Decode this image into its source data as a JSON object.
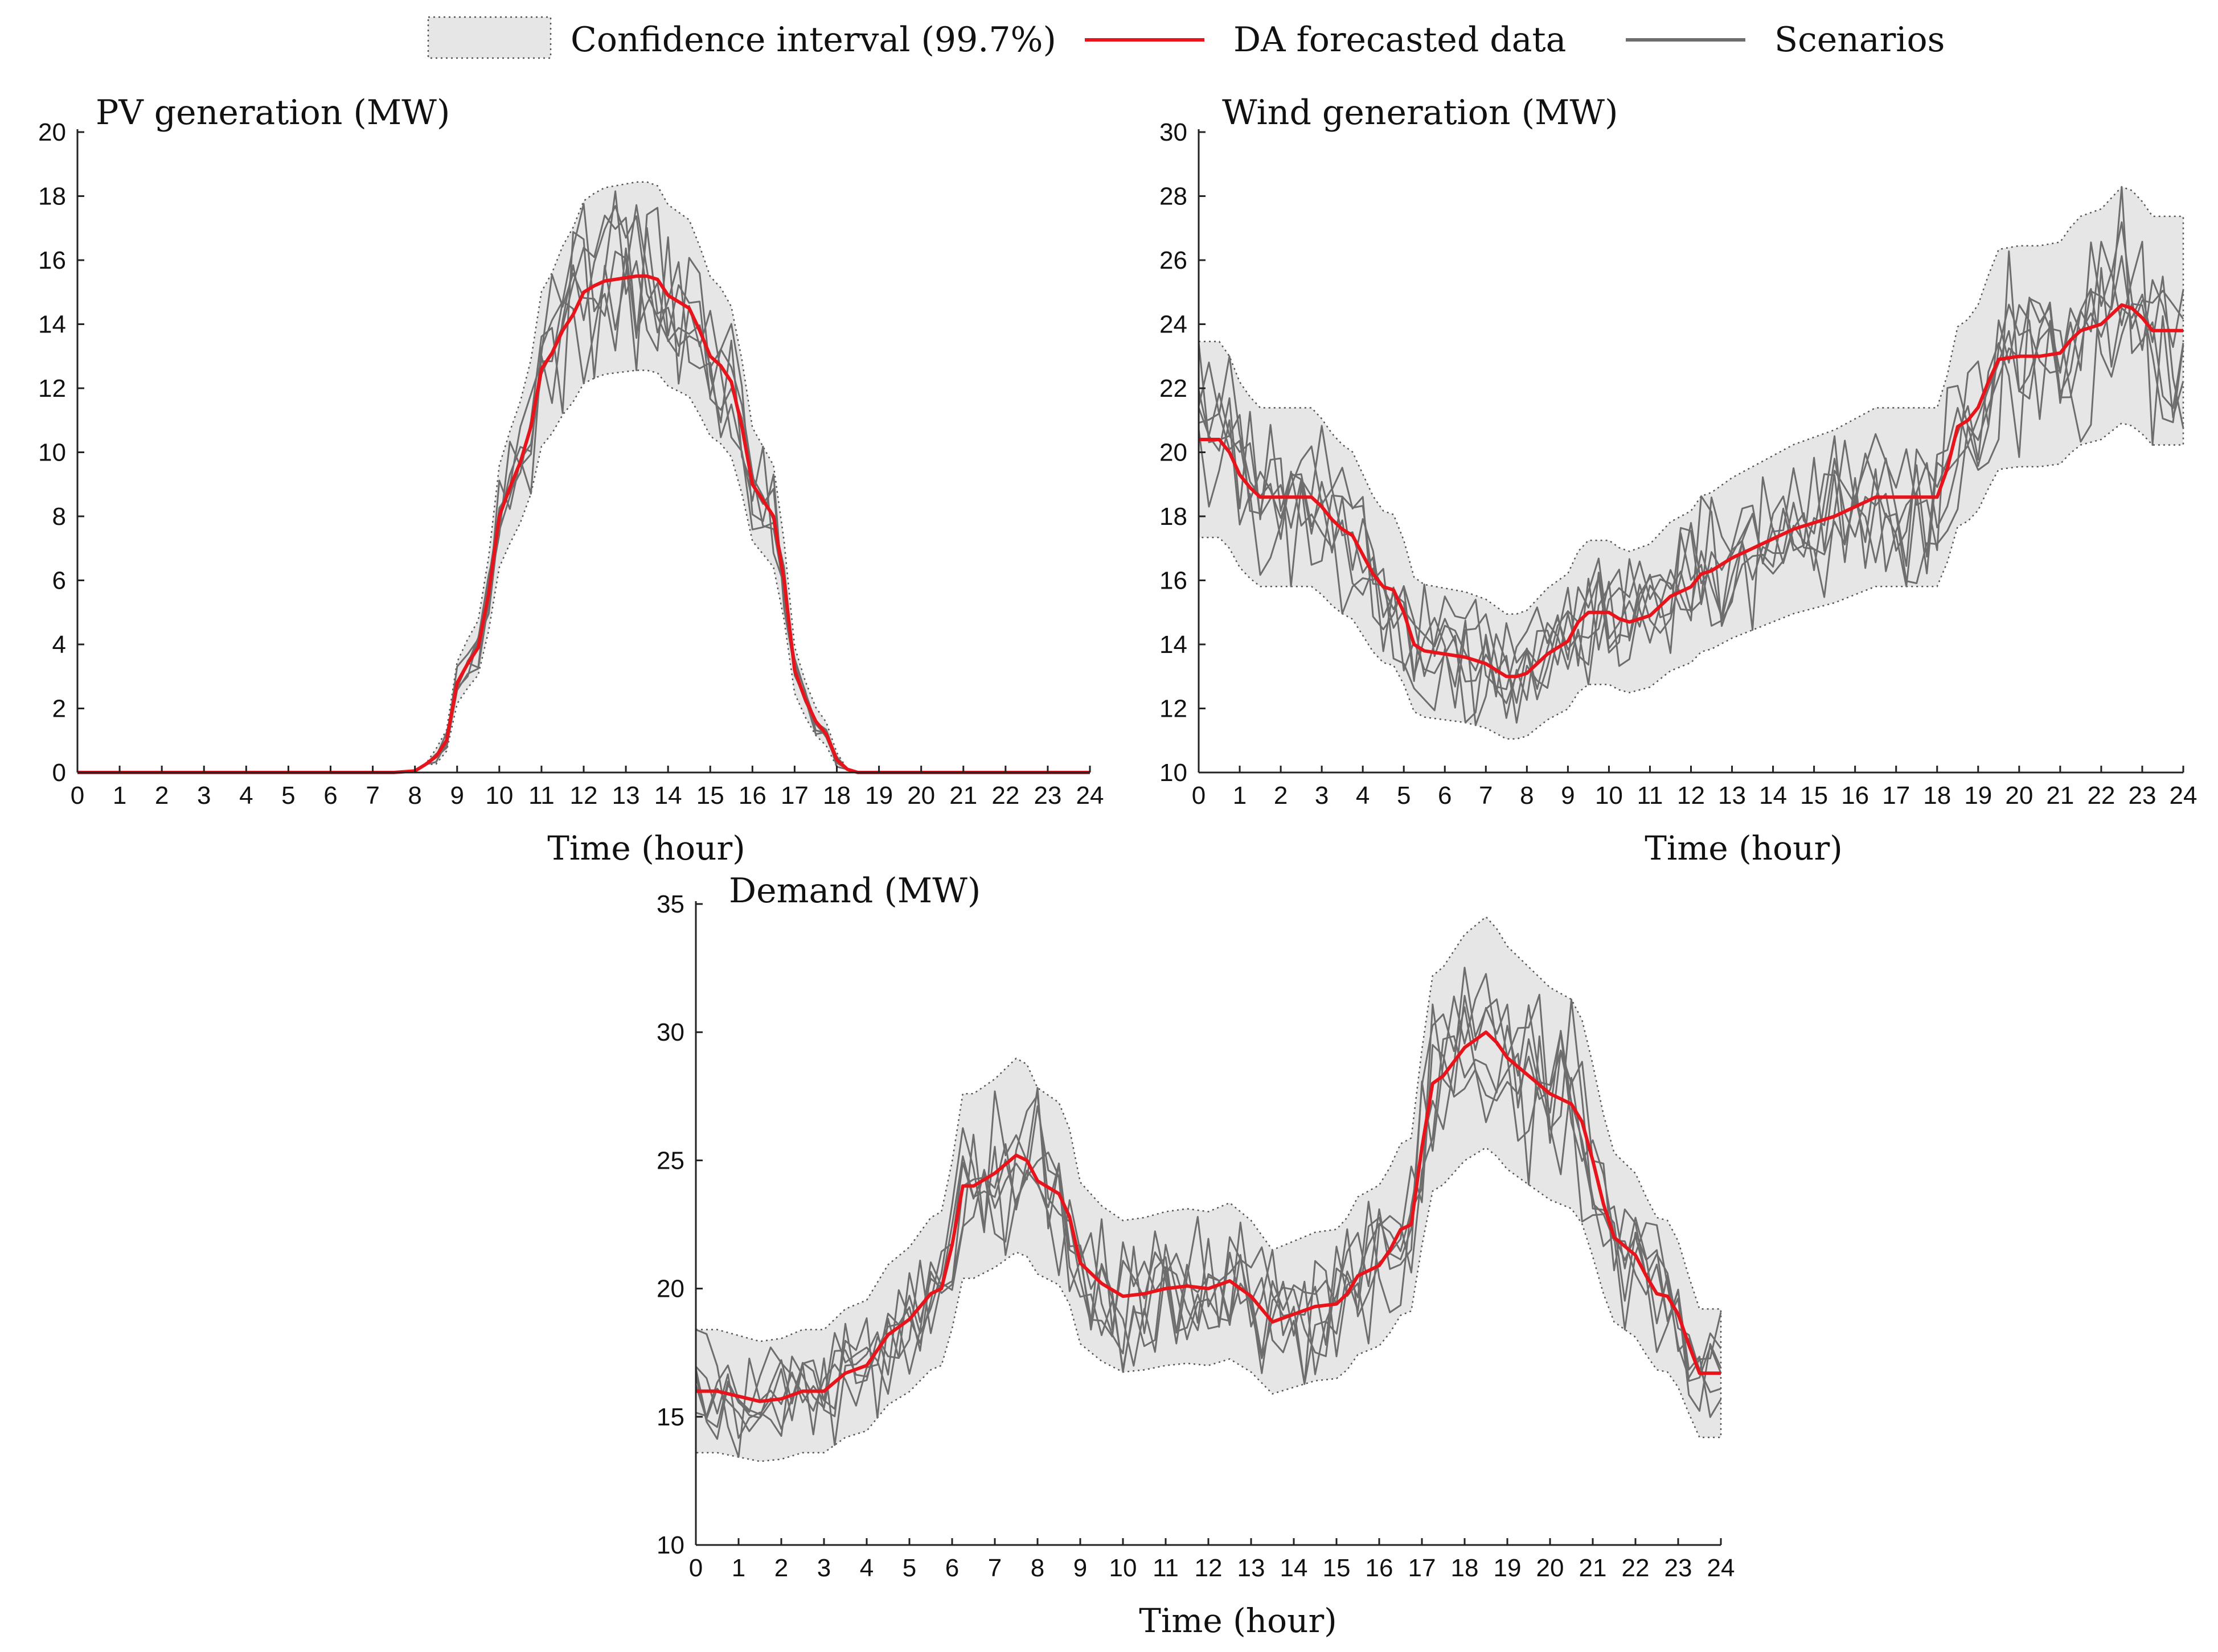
{
  "colors": {
    "forecast": "#e8141c",
    "scenario": "#6d6d6d",
    "band_fill": "#e6e6e6",
    "band_edge": "#555555",
    "axis": "#222222"
  },
  "legend": {
    "confidence_label": "Confidence interval (99.7%)",
    "forecast_label": "DA forecasted data",
    "scenarios_label": "Scenarios"
  },
  "chart_data": [
    {
      "id": "pv",
      "type": "line",
      "title": "PV generation (MW)",
      "ylabel": "PV generation (MW)",
      "xlabel": "Time (hour)",
      "xlim": [
        0,
        24
      ],
      "ylim": [
        0,
        20
      ],
      "xticks": [
        0,
        1,
        2,
        3,
        4,
        5,
        6,
        7,
        8,
        9,
        10,
        11,
        12,
        13,
        14,
        15,
        16,
        17,
        18,
        19,
        20,
        21,
        22,
        23,
        24
      ],
      "yticks": [
        0,
        2,
        4,
        6,
        8,
        10,
        12,
        14,
        16,
        18,
        20
      ],
      "scenario_count": 6,
      "confidence_level": "99.7%",
      "confidence_sigma": 3,
      "forecast": {
        "x": [
          0,
          1,
          2,
          3,
          4,
          5,
          6,
          7,
          7.5,
          8,
          8.25,
          8.5,
          8.75,
          9,
          9.25,
          9.5,
          9.75,
          10,
          10.25,
          10.5,
          10.75,
          11,
          11.25,
          11.5,
          11.75,
          12,
          12.25,
          12.5,
          12.75,
          13,
          13.25,
          13.5,
          13.75,
          14,
          14.25,
          14.5,
          14.75,
          15,
          15.25,
          15.5,
          15.75,
          16,
          16.25,
          16.5,
          16.75,
          17,
          17.25,
          17.5,
          17.75,
          18,
          18.25,
          18.5,
          19,
          20,
          21,
          22,
          23,
          24
        ],
        "y": [
          0,
          0,
          0,
          0,
          0,
          0,
          0,
          0,
          0,
          0.05,
          0.25,
          0.5,
          1.0,
          2.8,
          3.4,
          3.9,
          5.6,
          8.0,
          8.9,
          9.7,
          10.8,
          12.6,
          13.1,
          13.8,
          14.3,
          15.0,
          15.2,
          15.35,
          15.4,
          15.45,
          15.5,
          15.5,
          15.4,
          14.9,
          14.7,
          14.5,
          13.8,
          13.0,
          12.7,
          12.2,
          10.8,
          9.0,
          8.5,
          8.0,
          6.0,
          3.2,
          2.3,
          1.6,
          1.2,
          0.4,
          0.1,
          0,
          0,
          0,
          0,
          0,
          0,
          0
        ]
      }
    },
    {
      "id": "wind",
      "type": "line",
      "title": "Wind generation (MW)",
      "ylabel": "Wind generation (MW)",
      "xlabel": "Time (hour)",
      "xlim": [
        0,
        24
      ],
      "ylim": [
        10,
        30
      ],
      "xticks": [
        0,
        1,
        2,
        3,
        4,
        5,
        6,
        7,
        8,
        9,
        10,
        11,
        12,
        13,
        14,
        15,
        16,
        17,
        18,
        19,
        20,
        21,
        22,
        23,
        24
      ],
      "yticks": [
        10,
        12,
        14,
        16,
        18,
        20,
        22,
        24,
        26,
        28,
        30
      ],
      "scenario_count": 6,
      "confidence_level": "99.7%",
      "confidence_sigma": 3,
      "forecast": {
        "x": [
          0,
          0.5,
          0.75,
          1,
          1.25,
          1.5,
          2,
          2.5,
          2.75,
          3,
          3.25,
          3.5,
          3.75,
          4,
          4.25,
          4.5,
          4.75,
          5,
          5.25,
          5.5,
          6,
          6.5,
          6.75,
          7,
          7.25,
          7.5,
          7.75,
          8,
          8.5,
          9,
          9.25,
          9.5,
          10,
          10.25,
          10.5,
          11,
          11.5,
          12,
          12.25,
          12.5,
          13,
          13.5,
          14,
          14.5,
          15,
          15.5,
          16,
          16.5,
          17,
          17.5,
          18,
          18.25,
          18.5,
          18.75,
          19,
          19.25,
          19.5,
          20,
          20.5,
          21,
          21.25,
          21.5,
          22,
          22.25,
          22.5,
          22.75,
          23,
          23.25,
          23.5,
          24
        ],
        "y": [
          20.4,
          20.4,
          20.0,
          19.3,
          18.9,
          18.6,
          18.6,
          18.6,
          18.6,
          18.3,
          17.9,
          17.6,
          17.4,
          16.8,
          16.2,
          15.8,
          15.7,
          15.0,
          14.0,
          13.8,
          13.7,
          13.6,
          13.5,
          13.4,
          13.2,
          13.0,
          13.0,
          13.1,
          13.7,
          14.1,
          14.7,
          15.0,
          15.0,
          14.8,
          14.7,
          14.9,
          15.5,
          15.8,
          16.2,
          16.3,
          16.7,
          17.0,
          17.3,
          17.6,
          17.8,
          18.0,
          18.3,
          18.6,
          18.6,
          18.6,
          18.6,
          19.5,
          20.8,
          21.0,
          21.4,
          22.2,
          22.9,
          23.0,
          23.0,
          23.1,
          23.5,
          23.8,
          24.0,
          24.3,
          24.6,
          24.5,
          24.2,
          23.8,
          23.8,
          23.8
        ]
      }
    },
    {
      "id": "demand",
      "type": "line",
      "title": "Demand (MW)",
      "ylabel": "Demand (MW)",
      "xlabel": "Time (hour)",
      "xlim": [
        0,
        24
      ],
      "ylim": [
        10,
        35
      ],
      "xticks": [
        0,
        1,
        2,
        3,
        4,
        5,
        6,
        7,
        8,
        9,
        10,
        11,
        12,
        13,
        14,
        15,
        16,
        17,
        18,
        19,
        20,
        21,
        22,
        23,
        24
      ],
      "yticks": [
        10,
        15,
        20,
        25,
        30,
        35
      ],
      "scenario_count": 6,
      "confidence_level": "99.7%",
      "confidence_sigma": 3,
      "forecast": {
        "x": [
          0,
          0.5,
          1,
          1.5,
          2,
          2.5,
          3,
          3.5,
          4,
          4.5,
          5,
          5.25,
          5.5,
          5.75,
          6,
          6.25,
          6.5,
          7,
          7.5,
          7.75,
          8,
          8.5,
          8.75,
          9,
          9.5,
          10,
          10.5,
          11,
          11.5,
          12,
          12.5,
          13,
          13.5,
          14,
          14.5,
          15,
          15.25,
          15.5,
          16,
          16.25,
          16.5,
          16.75,
          17,
          17.25,
          17.5,
          18,
          18.5,
          18.75,
          19,
          19.5,
          20,
          20.5,
          20.75,
          21,
          21.25,
          21.5,
          22,
          22.25,
          22.5,
          22.75,
          23,
          23.25,
          23.5,
          24
        ],
        "y": [
          16.0,
          16.0,
          15.8,
          15.6,
          15.7,
          16.0,
          16.0,
          16.7,
          17.0,
          18.2,
          18.8,
          19.3,
          19.8,
          20.0,
          21.7,
          24.0,
          24.0,
          24.5,
          25.2,
          25.0,
          24.2,
          23.7,
          22.8,
          21.0,
          20.2,
          19.7,
          19.8,
          20.0,
          20.1,
          20.0,
          20.3,
          19.7,
          18.7,
          19.0,
          19.3,
          19.4,
          19.8,
          20.5,
          20.9,
          21.5,
          22.3,
          22.5,
          25.5,
          28.0,
          28.3,
          29.4,
          30.0,
          29.6,
          29.0,
          28.3,
          27.6,
          27.2,
          26.5,
          25.0,
          23.3,
          22.0,
          21.3,
          20.5,
          19.8,
          19.7,
          19.0,
          17.8,
          16.7,
          16.7
        ]
      }
    }
  ]
}
